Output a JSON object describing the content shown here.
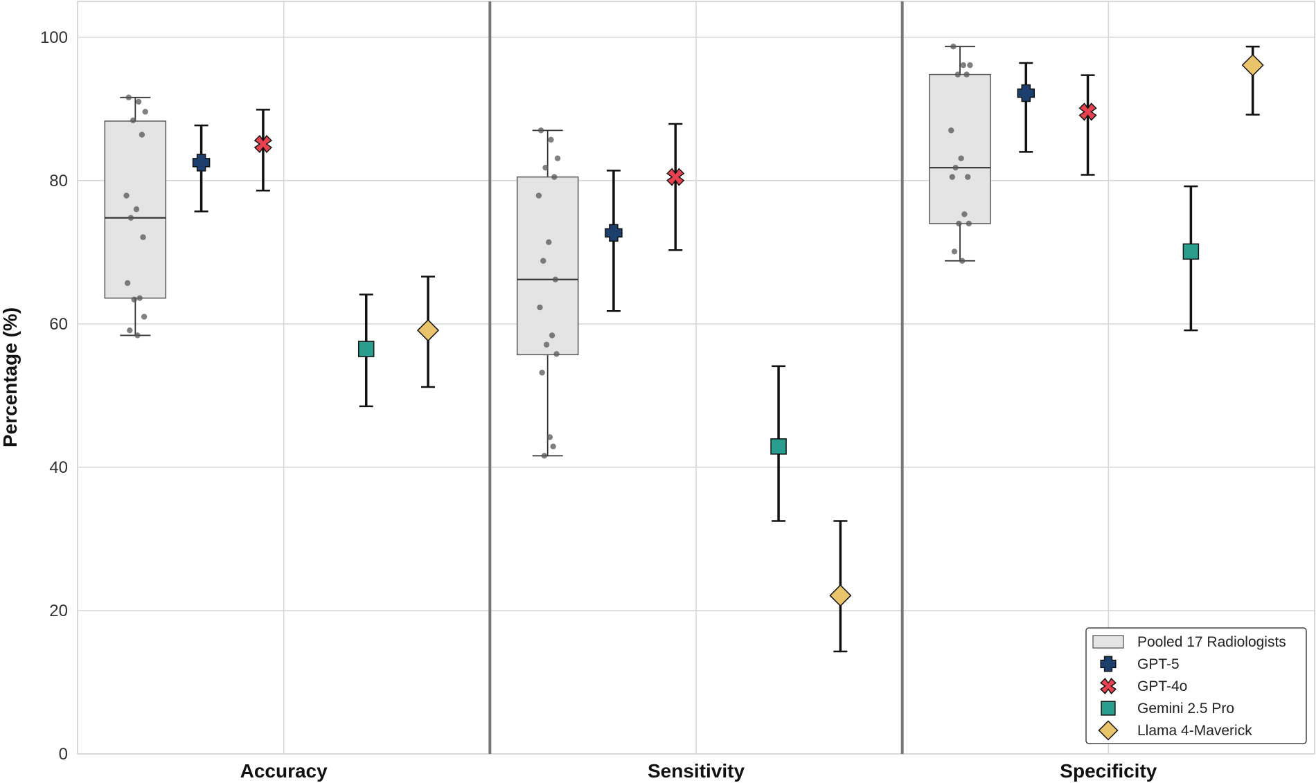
{
  "chart_data": {
    "type": "box+pointrange",
    "ylabel": "Percentage (%)",
    "ylim": [
      0,
      105
    ],
    "yticks": [
      "0",
      "20",
      "40",
      "60",
      "80",
      "100"
    ],
    "categories": [
      "Accuracy",
      "Sensitivity",
      "Specificity"
    ],
    "grid": true,
    "legend_position": "bottom-right",
    "radiologists": {
      "name": "Pooled 17 Radiologists",
      "boxes": [
        {
          "category": "Accuracy",
          "q1": 63.6,
          "median": 74.8,
          "q3": 88.3,
          "min": 58.4,
          "max": 91.6,
          "points": [
            91.6,
            91.0,
            89.6,
            88.4,
            86.4,
            77.9,
            76.0,
            74.8,
            72.1,
            65.7,
            63.6,
            63.4,
            61.0,
            59.1,
            58.4
          ]
        },
        {
          "category": "Sensitivity",
          "q1": 55.7,
          "median": 66.2,
          "q3": 80.5,
          "min": 41.6,
          "max": 87.0,
          "points": [
            87.0,
            85.7,
            83.1,
            81.8,
            80.5,
            77.9,
            71.4,
            68.8,
            66.2,
            62.3,
            58.4,
            57.1,
            55.8,
            53.2,
            44.2,
            42.9,
            41.6
          ]
        },
        {
          "category": "Specificity",
          "q1": 74.0,
          "median": 81.8,
          "q3": 94.8,
          "min": 68.8,
          "max": 98.7,
          "points": [
            98.7,
            96.1,
            96.1,
            94.8,
            94.8,
            87.0,
            83.1,
            81.8,
            80.5,
            80.5,
            75.3,
            74.0,
            74.0,
            70.1,
            68.8
          ]
        }
      ]
    },
    "series": [
      {
        "name": "GPT-5",
        "marker": "plus",
        "color": "#1c3f6e",
        "values": [
          82.5,
          72.7,
          92.2
        ],
        "lower": [
          75.7,
          61.8,
          84.0
        ],
        "upper": [
          87.7,
          81.4,
          96.4
        ]
      },
      {
        "name": "GPT-4o",
        "marker": "x",
        "color": "#e8414f",
        "values": [
          85.1,
          80.5,
          89.6
        ],
        "lower": [
          78.6,
          70.3,
          80.8
        ],
        "upper": [
          89.9,
          87.9,
          94.7
        ]
      },
      {
        "name": "Gemini 2.5 Pro",
        "marker": "square",
        "color": "#2a9d8f",
        "values": [
          56.5,
          42.9,
          70.1
        ],
        "lower": [
          48.5,
          32.5,
          59.1
        ],
        "upper": [
          64.1,
          54.1,
          79.2
        ]
      },
      {
        "name": "Llama 4-Maverick",
        "marker": "diamond",
        "color": "#e9c46a",
        "values": [
          59.1,
          22.1,
          96.1
        ],
        "lower": [
          51.2,
          14.3,
          89.2
        ],
        "upper": [
          66.6,
          32.5,
          98.7
        ]
      }
    ]
  }
}
